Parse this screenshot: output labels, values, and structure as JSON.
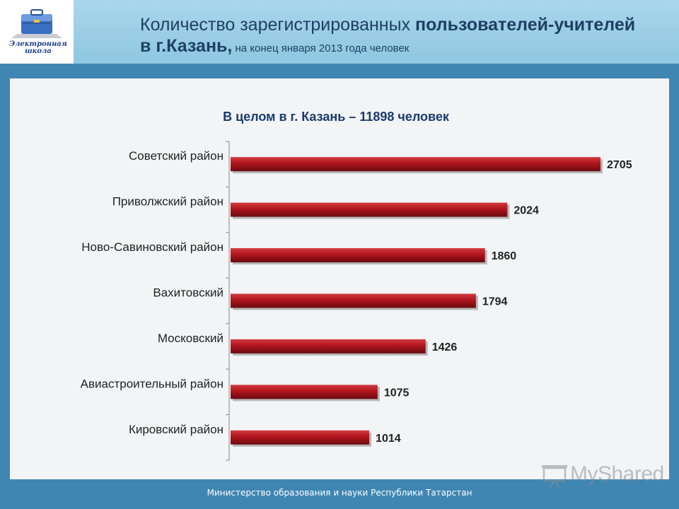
{
  "header": {
    "logo_line1": "Электронная",
    "logo_line2": "школа",
    "title_part1": "Количество зарегистрированных ",
    "title_bold1": "пользователей-учителей",
    "title_bold2": "в г.Казань,",
    "title_sub": " на конец января 2013 года человек"
  },
  "colors": {
    "bar": "#b0141c",
    "bar_dark": "#6b0a10",
    "bar_light": "#d23a40",
    "header_bg": "#9ccfe6",
    "page_bg": "#3f86b3"
  },
  "chart_data": {
    "type": "bar",
    "orientation": "horizontal",
    "title": "В целом в г. Казань – 11898 человек",
    "categories": [
      "Советский район",
      "Приволжский район",
      "Ново-Савиновский район",
      "Вахитовский",
      "Московский",
      "Авиастроительный район",
      "Кировский район"
    ],
    "values": [
      2705,
      2024,
      1860,
      1794,
      1426,
      1075,
      1014
    ],
    "data_labels": [
      "2705",
      "2024",
      "1860",
      "1794",
      "1426",
      "1075",
      "1014"
    ],
    "xlim": [
      0,
      2705
    ],
    "grid": false,
    "legend": "none"
  },
  "footer": {
    "text": "Министерство образования и науки Республики Татарстан"
  },
  "watermark": {
    "text": "MyShared",
    "icon": "presentation-icon"
  }
}
